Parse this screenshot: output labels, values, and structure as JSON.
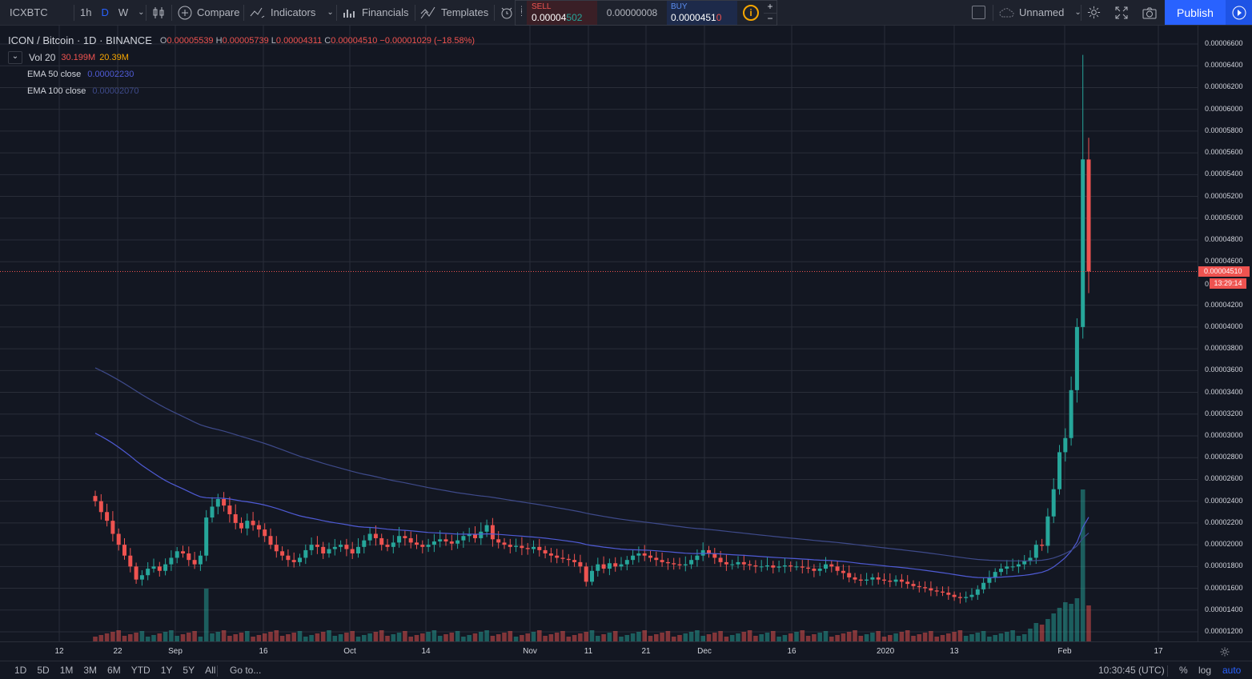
{
  "toolbar": {
    "symbol": "ICXBTC",
    "intervals": [
      "1h",
      "D",
      "W"
    ],
    "compare": "Compare",
    "indicators": "Indicators",
    "financials": "Financials",
    "templates": "Templates",
    "unnamed": "Unnamed",
    "publish": "Publish"
  },
  "trade": {
    "sell_label": "SELL",
    "sell_price_main": "0.00004",
    "sell_price_tail": "502",
    "spread": "0.00000008",
    "buy_label": "BUY",
    "buy_price_main": "0.0000451",
    "buy_price_tail": "0"
  },
  "legend": {
    "title": "ICON / Bitcoin · 1D · BINANCE",
    "o": "O",
    "o_val": "0.00005539",
    "h": "H",
    "h_val": "0.00005739",
    "l": "L",
    "l_val": "0.00004311",
    "c": "C",
    "c_val": "0.00004510",
    "change": "−0.00001029 (−18.58%)",
    "vol_label": "Vol 20",
    "vol_val1": "30.199M",
    "vol_val2": "20.39M",
    "ema50_label": "EMA 50 close",
    "ema50_val": "0.00002230",
    "ema100_label": "EMA 100 close",
    "ema100_val": "0.00002070"
  },
  "price_axis": {
    "labels": [
      "0.00006600",
      "0.00006400",
      "0.00006200",
      "0.00006000",
      "0.00005800",
      "0.00005600",
      "0.00005400",
      "0.00005200",
      "0.00005000",
      "0.00004800",
      "0.00004600",
      "0.00004200",
      "0.00004000",
      "0.00003800",
      "0.00003600",
      "0.00003400",
      "0.00003200",
      "0.00003000",
      "0.00002800",
      "0.00002600",
      "0.00002400",
      "0.00002200",
      "0.00002000",
      "0.00001800",
      "0.00001600",
      "0.00001400",
      "0.00001200"
    ],
    "last_price": "0.00004510",
    "countdown": "13:29:14",
    "partial_label": "0."
  },
  "time_axis": {
    "labels": [
      "12",
      "22",
      "Sep",
      "16",
      "Oct",
      "14",
      "Nov",
      "11",
      "21",
      "Dec",
      "16",
      "2020",
      "13",
      "Feb",
      "17"
    ]
  },
  "bottom": {
    "ranges": [
      "1D",
      "5D",
      "1M",
      "3M",
      "6M",
      "YTD",
      "1Y",
      "5Y",
      "All"
    ],
    "goto": "Go to...",
    "clock": "10:30:45 (UTC)",
    "percent": "%",
    "log": "log",
    "auto": "auto"
  },
  "colors": {
    "up": "#26a69a",
    "down": "#ef5350",
    "ema50": "#4f5bd5",
    "ema100": "#3e4a8a",
    "accent": "#2962ff"
  },
  "chart_data": {
    "type": "candlestick",
    "title": "ICON / Bitcoin · 1D · BINANCE",
    "ylim": [
      1.17e-05,
      6.72e-05
    ],
    "x_labels": [
      "12",
      "22",
      "Sep",
      "16",
      "Oct",
      "14",
      "Nov",
      "11",
      "21",
      "Dec",
      "16",
      "2020",
      "13",
      "Feb",
      "17"
    ],
    "candles_note": "approximate daily OHLC read from chart",
    "closes": [
      2.4e-05,
      2.3e-05,
      2.22e-05,
      2.1e-05,
      2e-05,
      1.9e-05,
      1.8e-05,
      1.68e-05,
      1.72e-05,
      1.78e-05,
      1.8e-05,
      1.76e-05,
      1.82e-05,
      1.88e-05,
      1.94e-05,
      1.92e-05,
      1.86e-05,
      1.82e-05,
      1.9e-05,
      2.25e-05,
      2.35e-05,
      2.42e-05,
      2.36e-05,
      2.28e-05,
      2.2e-05,
      2.15e-05,
      2.22e-05,
      2.18e-05,
      2.14e-05,
      2.08e-05,
      2e-05,
      1.94e-05,
      1.9e-05,
      1.86e-05,
      1.84e-05,
      1.88e-05,
      1.95e-05,
      2e-05,
      1.98e-05,
      1.92e-05,
      1.96e-05,
      1.98e-05,
      2e-05,
      1.96e-05,
      1.92e-05,
      1.98e-05,
      2.04e-05,
      2.1e-05,
      2.06e-05,
      2e-05,
      1.98e-05,
      2.02e-05,
      2.08e-05,
      2.06e-05,
      2.02e-05,
      2e-05,
      1.98e-05,
      2e-05,
      2.03e-05,
      2.05e-05,
      2.03e-05,
      2.01e-05,
      2.04e-05,
      2.08e-05,
      2.1e-05,
      2.06e-05,
      2.12e-05,
      2.18e-05,
      2.05e-05,
      2.02e-05,
      2e-05,
      1.98e-05,
      1.99e-05,
      1.97e-05,
      1.96e-05,
      1.98e-05,
      1.95e-05,
      1.92e-05,
      1.9e-05,
      1.88e-05,
      1.87e-05,
      1.86e-05,
      1.84e-05,
      1.8e-05,
      1.66e-05,
      1.76e-05,
      1.82e-05,
      1.78e-05,
      1.83e-05,
      1.8e-05,
      1.82e-05,
      1.86e-05,
      1.9e-05,
      1.92e-05,
      1.9e-05,
      1.88e-05,
      1.86e-05,
      1.84e-05,
      1.83e-05,
      1.82e-05,
      1.81e-05,
      1.82e-05,
      1.86e-05,
      1.9e-05,
      1.95e-05,
      1.92e-05,
      1.88e-05,
      1.84e-05,
      1.82e-05,
      1.82e-05,
      1.84e-05,
      1.82e-05,
      1.81e-05,
      1.8e-05,
      1.8e-05,
      1.81e-05,
      1.79e-05,
      1.8e-05,
      1.81e-05,
      1.8e-05,
      1.8e-05,
      1.79e-05,
      1.78e-05,
      1.76e-05,
      1.78e-05,
      1.82e-05,
      1.8e-05,
      1.76e-05,
      1.74e-05,
      1.7e-05,
      1.68e-05,
      1.67e-05,
      1.68e-05,
      1.7e-05,
      1.68e-05,
      1.67e-05,
      1.66e-05,
      1.68e-05,
      1.66e-05,
      1.64e-05,
      1.62e-05,
      1.61e-05,
      1.6e-05,
      1.58e-05,
      1.57e-05,
      1.56e-05,
      1.54e-05,
      1.52e-05,
      1.51e-05,
      1.52e-05,
      1.54e-05,
      1.59e-05,
      1.65e-05,
      1.7e-05,
      1.75e-05,
      1.78e-05,
      1.8e-05,
      1.8e-05,
      1.82e-05,
      1.85e-05,
      1.88e-05,
      2e-05,
      1.99e-05,
      2.26e-05,
      2.51e-05,
      2.85e-05,
      2.98e-05,
      3.42e-05,
      4e-05,
      5.54e-05,
      4.51e-05
    ]
  }
}
